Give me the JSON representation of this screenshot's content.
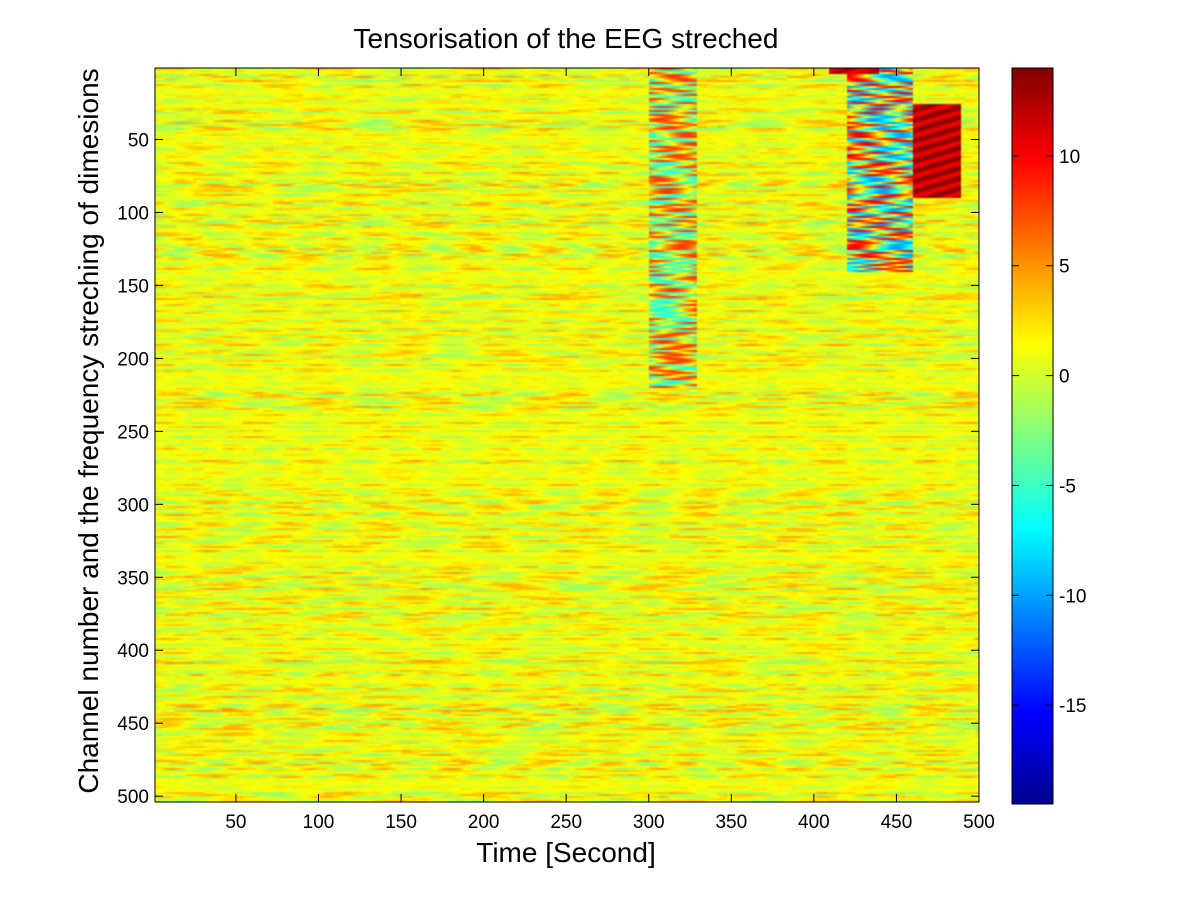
{
  "chart_data": {
    "type": "heatmap",
    "title": "Tensorisation of the EEG streched",
    "xlabel": "Time [Second]",
    "ylabel": "Channel number and the frequency streching of dimesions",
    "xlim": [
      1,
      500
    ],
    "ylim": [
      1,
      504
    ],
    "y_reversed": true,
    "x_ticks": [
      50,
      100,
      150,
      200,
      250,
      300,
      350,
      400,
      450,
      500
    ],
    "y_ticks": [
      50,
      100,
      150,
      200,
      250,
      300,
      350,
      400,
      450,
      500
    ],
    "colormap": "jet",
    "clim": [
      -19.5,
      14
    ],
    "colorbar_ticks": [
      10,
      5,
      0,
      -5,
      -10,
      -15
    ],
    "background_value": 1,
    "regions": [
      {
        "description": "dark red vertical band",
        "x_range": [
          460,
          490
        ],
        "y_range": [
          25,
          90
        ],
        "value_range": [
          10,
          14
        ]
      },
      {
        "description": "alternating red/blue stripes",
        "x_range": [
          420,
          460
        ],
        "y_range": [
          1,
          140
        ],
        "value_range": [
          -10,
          10
        ]
      },
      {
        "description": "red/cyan oscillations",
        "x_range": [
          300,
          330
        ],
        "y_range": [
          1,
          220
        ],
        "value_range": [
          -6,
          8
        ]
      },
      {
        "description": "dark red patch near top edge",
        "x_range": [
          410,
          440
        ],
        "y_range": [
          1,
          5
        ],
        "value_range": [
          10,
          13
        ]
      }
    ]
  },
  "colors": {
    "axis": "#000000",
    "background": "#ffffff",
    "jet": [
      "#00008F",
      "#0000FF",
      "#00FFFF",
      "#FFFF00",
      "#FF0000",
      "#800000"
    ]
  }
}
